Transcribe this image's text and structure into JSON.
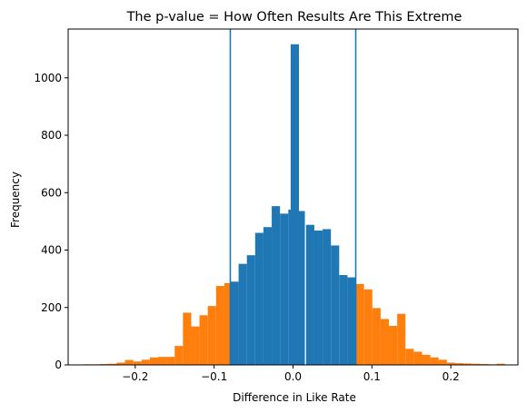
{
  "chart_data": {
    "type": "bar",
    "subtype": "histogram",
    "title": "The p-value = How Often Results Are This Extreme",
    "xlabel": "Difference in Like Rate",
    "ylabel": "Frequency",
    "xlim": [
      -0.285,
      0.285
    ],
    "ylim": [
      0,
      1170
    ],
    "x_ticks": [
      -0.2,
      -0.1,
      0.0,
      0.1,
      0.2
    ],
    "x_tick_labels": [
      "−0.2",
      "−0.1",
      "0.0",
      "0.1",
      "0.2"
    ],
    "y_ticks": [
      0,
      200,
      400,
      600,
      800,
      1000
    ],
    "y_tick_labels": [
      "0",
      "200",
      "400",
      "600",
      "800",
      "1000"
    ],
    "grid": false,
    "legend": "none",
    "colors": {
      "inside": "#1f77b4",
      "extreme": "#ff7f0e",
      "reference_lines": "#1f77b4"
    },
    "reference_lines_x": [
      -0.0795,
      0.0795
    ],
    "bin_width": 0.0105,
    "series": [
      {
        "color_key": "extreme",
        "bins": [
          {
            "x0": -0.2655,
            "value": 2
          },
          {
            "x0": -0.255,
            "value": 2
          },
          {
            "x0": -0.2445,
            "value": 3
          },
          {
            "x0": -0.234,
            "value": 4
          },
          {
            "x0": -0.2235,
            "value": 8
          },
          {
            "x0": -0.213,
            "value": 17
          },
          {
            "x0": -0.2025,
            "value": 12
          },
          {
            "x0": -0.192,
            "value": 18
          },
          {
            "x0": -0.1815,
            "value": 26
          },
          {
            "x0": -0.171,
            "value": 28
          },
          {
            "x0": -0.1605,
            "value": 28
          },
          {
            "x0": -0.15,
            "value": 66
          },
          {
            "x0": -0.1395,
            "value": 182
          },
          {
            "x0": -0.129,
            "value": 134
          },
          {
            "x0": -0.1185,
            "value": 173
          },
          {
            "x0": -0.108,
            "value": 205
          },
          {
            "x0": -0.0975,
            "value": 275
          },
          {
            "x0": -0.087,
            "value": 285
          },
          {
            "x0": 0.0795,
            "value": 282
          },
          {
            "x0": 0.09,
            "value": 263
          },
          {
            "x0": 0.1005,
            "value": 198
          },
          {
            "x0": 0.111,
            "value": 160
          },
          {
            "x0": 0.1215,
            "value": 136
          },
          {
            "x0": 0.132,
            "value": 178
          },
          {
            "x0": 0.1425,
            "value": 56
          },
          {
            "x0": 0.153,
            "value": 46
          },
          {
            "x0": 0.1635,
            "value": 35
          },
          {
            "x0": 0.174,
            "value": 26
          },
          {
            "x0": 0.1845,
            "value": 18
          },
          {
            "x0": 0.195,
            "value": 8
          },
          {
            "x0": 0.2055,
            "value": 6
          },
          {
            "x0": 0.216,
            "value": 5
          },
          {
            "x0": 0.2265,
            "value": 4
          },
          {
            "x0": 0.237,
            "value": 3
          },
          {
            "x0": 0.2475,
            "value": 2
          },
          {
            "x0": 0.258,
            "value": 4
          }
        ]
      },
      {
        "color_key": "inside",
        "bins": [
          {
            "x0": -0.0795,
            "value": 290
          },
          {
            "x0": -0.069,
            "value": 352
          },
          {
            "x0": -0.0585,
            "value": 382
          },
          {
            "x0": -0.048,
            "value": 460
          },
          {
            "x0": -0.0375,
            "value": 480
          },
          {
            "x0": -0.027,
            "value": 553
          },
          {
            "x0": -0.0165,
            "value": 527
          },
          {
            "x0": -0.006,
            "value": 541
          },
          {
            "x0": 0.0045,
            "value": 536
          },
          {
            "x0": -0.003,
            "value": 1117
          },
          {
            "x0": 0.0165,
            "value": 488
          },
          {
            "x0": 0.027,
            "value": 468
          },
          {
            "x0": 0.0375,
            "value": 473
          },
          {
            "x0": 0.048,
            "value": 416
          },
          {
            "x0": 0.0585,
            "value": 313
          },
          {
            "x0": 0.069,
            "value": 305
          }
        ]
      }
    ]
  }
}
